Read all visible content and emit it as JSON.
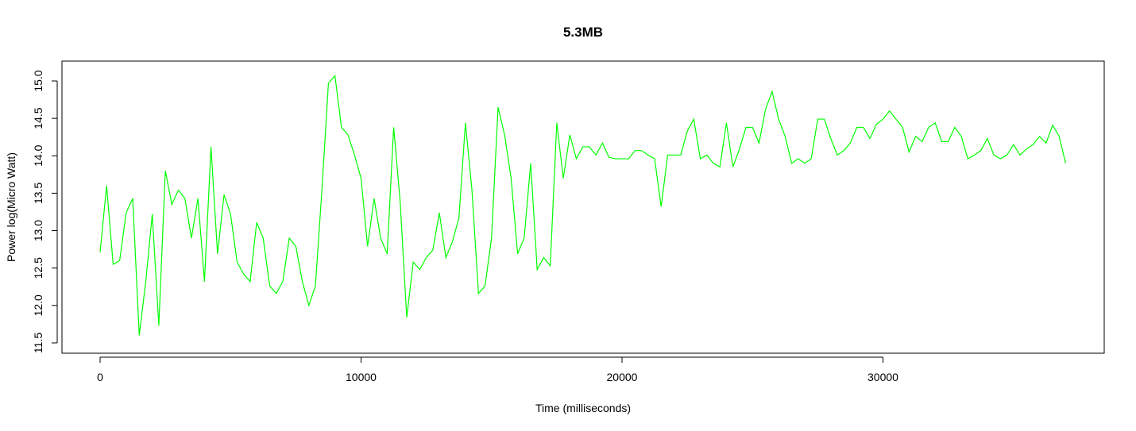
{
  "chart_data": {
    "type": "line",
    "title": "5.3MB",
    "xlabel": "Time (milliseconds)",
    "ylabel": "Power log(Micro Watt)",
    "color": "#00ff00",
    "x": [
      0,
      250,
      500,
      750,
      1000,
      1250,
      1500,
      1750,
      2000,
      2250,
      2500,
      2750,
      3000,
      3250,
      3500,
      3750,
      4000,
      4250,
      4500,
      4750,
      5000,
      5250,
      5500,
      5750,
      6000,
      6250,
      6500,
      6750,
      7000,
      7250,
      7500,
      7750,
      8000,
      8250,
      8500,
      8750,
      9000,
      9250,
      9500,
      9750,
      10000,
      10250,
      10500,
      10750,
      11000,
      11250,
      11500,
      11750,
      12000,
      12250,
      12500,
      12750,
      13000,
      13250,
      13500,
      13750,
      14000,
      14250,
      14500,
      14750,
      15000,
      15250,
      15500,
      15750,
      16000,
      16250,
      16500,
      16750,
      17000,
      17250,
      17500,
      17750,
      18000,
      18250,
      18500,
      18750,
      19000,
      19250,
      19500,
      19750,
      20000,
      20250,
      20500,
      20750,
      21000,
      21250,
      21500,
      21750,
      22000,
      22250,
      22500,
      22750,
      23000,
      23250,
      23500,
      23750,
      24000,
      24250,
      24500,
      24750,
      25000,
      25250,
      25500,
      25750,
      26000,
      26250,
      26500,
      26750,
      27000,
      27250,
      27500,
      27750,
      28000,
      28250,
      28500,
      28750,
      29000,
      29250,
      29500,
      29750,
      30000,
      30250,
      30500,
      30750,
      31000,
      31250,
      31500,
      31750,
      32000,
      32250,
      32500,
      32750,
      33000,
      33250,
      33500,
      33750,
      34000,
      34250,
      34500,
      34750,
      35000,
      35250,
      35500,
      35750,
      36000,
      36250,
      36500,
      36750,
      37000
    ],
    "values": [
      12.71,
      13.6,
      12.55,
      12.6,
      13.24,
      13.43,
      11.6,
      12.32,
      13.22,
      11.73,
      13.8,
      13.35,
      13.54,
      13.43,
      12.9,
      13.43,
      12.32,
      14.12,
      12.69,
      13.48,
      13.22,
      12.58,
      12.42,
      12.32,
      13.11,
      12.9,
      12.26,
      12.16,
      12.32,
      12.9,
      12.79,
      12.32,
      12.0,
      12.26,
      13.54,
      14.97,
      15.07,
      14.38,
      14.28,
      14.01,
      13.7,
      12.79,
      13.43,
      12.9,
      12.69,
      14.38,
      13.38,
      11.84,
      12.58,
      12.48,
      12.64,
      12.74,
      13.24,
      12.64,
      12.85,
      13.17,
      14.44,
      13.54,
      12.16,
      12.26,
      12.9,
      14.65,
      14.28,
      13.7,
      12.69,
      12.9,
      13.9,
      12.48,
      12.64,
      12.53,
      14.44,
      13.7,
      14.28,
      13.96,
      14.12,
      14.12,
      14.01,
      14.17,
      13.98,
      13.96,
      13.96,
      13.96,
      14.07,
      14.07,
      14.01,
      13.96,
      13.32,
      14.01,
      14.01,
      14.01,
      14.33,
      14.49,
      13.96,
      14.01,
      13.9,
      13.85,
      14.44,
      13.85,
      14.09,
      14.38,
      14.38,
      14.17,
      14.62,
      14.86,
      14.49,
      14.26,
      13.9,
      13.96,
      13.9,
      13.96,
      14.49,
      14.49,
      14.23,
      14.01,
      14.07,
      14.17,
      14.38,
      14.38,
      14.23,
      14.42,
      14.49,
      14.6,
      14.49,
      14.38,
      14.05,
      14.26,
      14.19,
      14.38,
      14.44,
      14.19,
      14.19,
      14.38,
      14.26,
      13.96,
      14.01,
      14.07,
      14.23,
      14.01,
      13.96,
      14.01,
      14.15,
      14.01,
      14.09,
      14.15,
      14.26,
      14.17,
      14.41,
      14.26,
      13.9
    ],
    "xlim": [
      -1461,
      38478
    ],
    "ylim": [
      11.362,
      15.265
    ],
    "xticks": [
      0,
      10000,
      20000,
      30000
    ],
    "yticks": [
      11.5,
      {
        "value": 12,
        "label": "12.0"
      },
      12.5,
      {
        "value": 13,
        "label": "13.0"
      },
      13.5,
      {
        "value": 14,
        "label": "14.0"
      },
      14.5,
      {
        "value": 15,
        "label": "15.0"
      }
    ]
  }
}
